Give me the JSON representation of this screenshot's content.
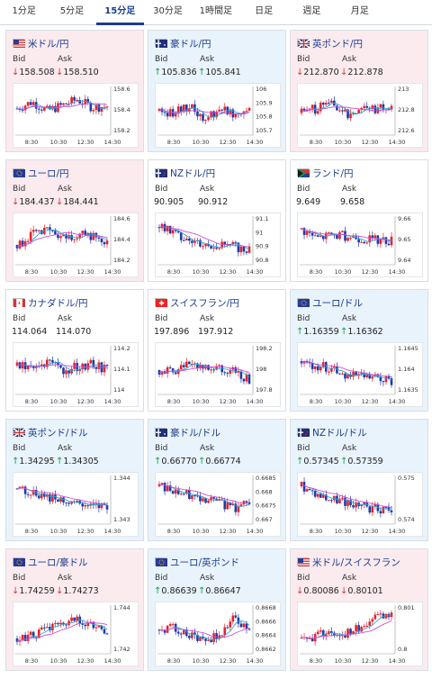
{
  "tabs": [
    "1分足",
    "5分足",
    "15分足",
    "30分足",
    "1時間足",
    "日足",
    "週足",
    "月足"
  ],
  "active_tab": 2,
  "colors": {
    "down": "#d33333",
    "up": "#1a9c4c",
    "title": "#1b3d91",
    "candle_up": "#e8212b",
    "candle_down": "#1f3aa5",
    "ma_short": "#29a8d8",
    "ma_long": "#d24bd6"
  },
  "labels": {
    "bid": "Bid",
    "ask": "Ask"
  },
  "cards": [
    {
      "pair": "米ドル/円",
      "flag": "us-flag-icon",
      "trend": "down",
      "bid": "158.508",
      "ask": "158.510",
      "ticks": [
        "158.6",
        "158.4",
        "158.2"
      ],
      "x_ticks": [
        "8:30",
        "10:30",
        "12:30",
        "14:30"
      ]
    },
    {
      "pair": "豪ドル/円",
      "flag": "au-flag-icon",
      "trend": "up",
      "bid": "105.836",
      "ask": "105.841",
      "ticks": [
        "106",
        "105.9",
        "105.8",
        "105.7"
      ],
      "x_ticks": [
        "8:30",
        "10:30",
        "12:30",
        "14:30"
      ]
    },
    {
      "pair": "英ポンド/円",
      "flag": "gb-flag-icon",
      "trend": "down",
      "bid": "212.870",
      "ask": "212.878",
      "ticks": [
        "213",
        "212.8",
        "212.6"
      ],
      "x_ticks": [
        "8:30",
        "10:30",
        "12:30",
        "14:30"
      ]
    },
    {
      "pair": "ユーロ/円",
      "flag": "eu-flag-icon",
      "trend": "down",
      "bid": "184.437",
      "ask": "184.441",
      "ticks": [
        "184.6",
        "184.4",
        "184.2"
      ],
      "x_ticks": [
        "8:30",
        "10:30",
        "12:30",
        "14:30"
      ]
    },
    {
      "pair": "NZドル/円",
      "flag": "nz-flag-icon",
      "trend": "flat",
      "bid": "90.905",
      "ask": "90.912",
      "ticks": [
        "91.1",
        "91",
        "90.9",
        "90.8"
      ],
      "x_ticks": [
        "8:30",
        "10:30",
        "12:30",
        "14:30"
      ]
    },
    {
      "pair": "ランド/円",
      "flag": "za-flag-icon",
      "trend": "flat",
      "bid": "9.649",
      "ask": "9.658",
      "ticks": [
        "9.66",
        "9.65",
        "9.64"
      ],
      "x_ticks": [
        "8:30",
        "10:30",
        "12:30",
        "14:30"
      ]
    },
    {
      "pair": "カナダドル/円",
      "flag": "ca-flag-icon",
      "trend": "flat",
      "bid": "114.064",
      "ask": "114.070",
      "ticks": [
        "114.2",
        "114.1",
        "114"
      ],
      "x_ticks": [
        "8:30",
        "10:30",
        "12:30",
        "14:30"
      ]
    },
    {
      "pair": "スイスフラン/円",
      "flag": "ch-flag-icon",
      "trend": "flat",
      "bid": "197.896",
      "ask": "197.912",
      "ticks": [
        "198.2",
        "198",
        "197.8"
      ],
      "x_ticks": [
        "8:30",
        "10:30",
        "12:30",
        "14:30"
      ]
    },
    {
      "pair": "ユーロ/ドル",
      "flag": "eu-us-flag-icon",
      "trend": "up",
      "bid": "1.16359",
      "ask": "1.16362",
      "ticks": [
        "1.1645",
        "1.164",
        "1.1635"
      ],
      "x_ticks": [
        "8:30",
        "10:30",
        "12:30",
        "14:30"
      ]
    },
    {
      "pair": "英ポンド/ドル",
      "flag": "gb-us-flag-icon",
      "trend": "up",
      "bid": "1.34295",
      "ask": "1.34305",
      "ticks": [
        "1.344",
        "1.343"
      ],
      "x_ticks": [
        "8:30",
        "10:30",
        "12:30",
        "14:30"
      ]
    },
    {
      "pair": "豪ドル/ドル",
      "flag": "au-us-flag-icon",
      "trend": "up",
      "bid": "0.66770",
      "ask": "0.66774",
      "ticks": [
        "0.6685",
        "0.668",
        "0.6675",
        "0.667"
      ],
      "x_ticks": [
        "8:30",
        "10:30",
        "12:30",
        "14:30"
      ]
    },
    {
      "pair": "NZドル/ドル",
      "flag": "nz-us-flag-icon",
      "trend": "up",
      "bid": "0.57345",
      "ask": "0.57359",
      "ticks": [
        "0.575",
        "0.574"
      ],
      "x_ticks": [
        "8:30",
        "10:30",
        "12:30",
        "14:30"
      ]
    },
    {
      "pair": "ユーロ/豪ドル",
      "flag": "eu-au-flag-icon",
      "trend": "down",
      "bid": "1.74259",
      "ask": "1.74273",
      "ticks": [
        "1.744",
        "1.742"
      ],
      "x_ticks": [
        "8:30",
        "10:30",
        "12:30",
        "14:30"
      ]
    },
    {
      "pair": "ユーロ/英ポンド",
      "flag": "eu-gb-flag-icon",
      "trend": "up",
      "bid": "0.86639",
      "ask": "0.86647",
      "ticks": [
        "0.8668",
        "0.8666",
        "0.8664",
        "0.8662"
      ],
      "x_ticks": [
        "8:30",
        "10:30",
        "12:30",
        "14:30"
      ]
    },
    {
      "pair": "米ドル/スイスフラン",
      "flag": "us-ch-flag-icon",
      "trend": "down",
      "bid": "0.80086",
      "ask": "0.80101",
      "ticks": [
        "0.801",
        "0.8"
      ],
      "x_ticks": [
        "8:30",
        "10:30",
        "12:30",
        "14:30"
      ]
    }
  ]
}
